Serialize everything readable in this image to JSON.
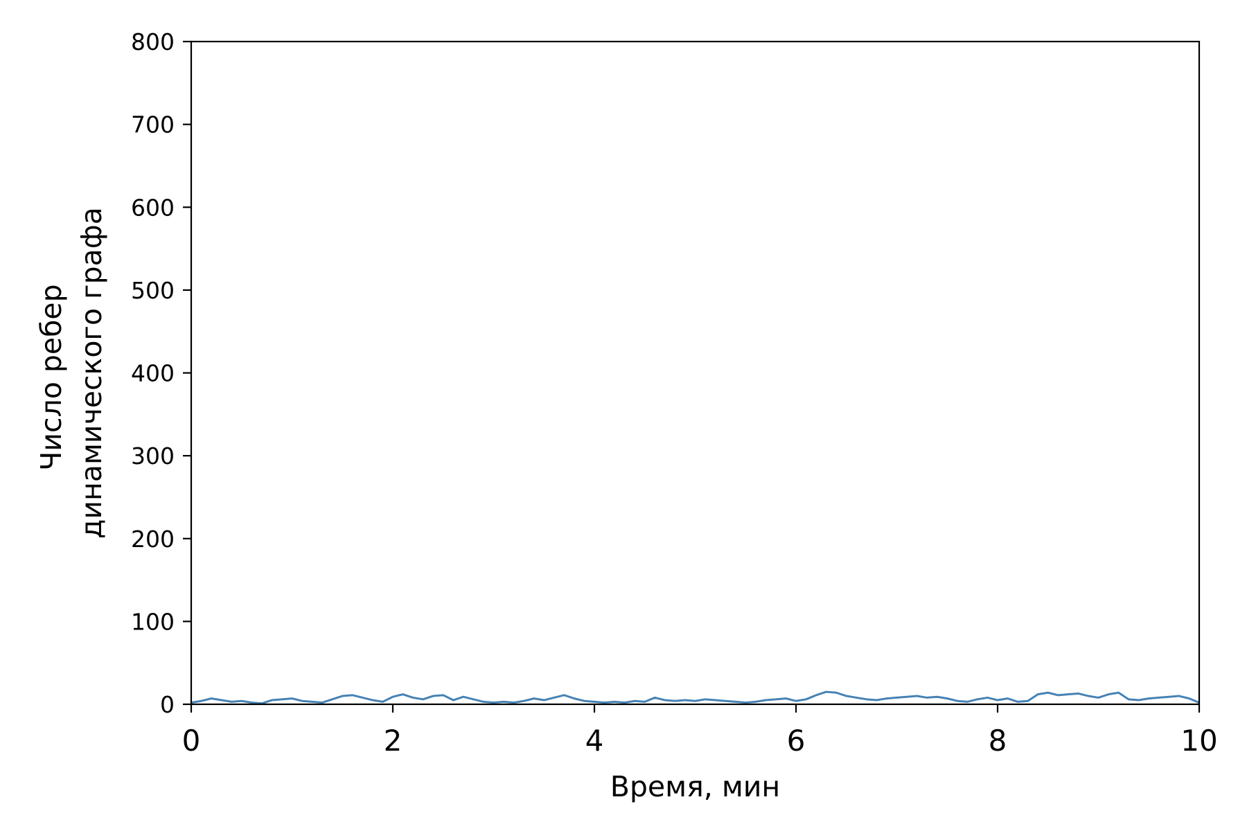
{
  "chart_data": {
    "type": "line",
    "title": "",
    "xlabel": "Время, мин",
    "ylabel_lines": [
      "Число ребер",
      "динамического графа"
    ],
    "xlim": [
      0,
      10
    ],
    "ylim": [
      0,
      800
    ],
    "x_ticks": [
      "0",
      "2",
      "4",
      "6",
      "8",
      "10"
    ],
    "y_ticks": [
      "0",
      "100",
      "200",
      "300",
      "400",
      "500",
      "600",
      "700",
      "800"
    ],
    "grid": false,
    "legend": "none",
    "series": [
      {
        "color": "#4682b4",
        "x": [
          0,
          0.1,
          0.2,
          0.3,
          0.4,
          0.5,
          0.6,
          0.7,
          0.8,
          0.9,
          1.0,
          1.1,
          1.2,
          1.3,
          1.4,
          1.5,
          1.6,
          1.7,
          1.8,
          1.9,
          2.0,
          2.1,
          2.2,
          2.3,
          2.4,
          2.5,
          2.6,
          2.7,
          2.8,
          2.9,
          3.0,
          3.1,
          3.2,
          3.3,
          3.4,
          3.5,
          3.6,
          3.7,
          3.8,
          3.9,
          4.0,
          4.1,
          4.2,
          4.3,
          4.4,
          4.5,
          4.6,
          4.7,
          4.8,
          4.9,
          5.0,
          5.1,
          5.2,
          5.3,
          5.4,
          5.5,
          5.6,
          5.7,
          5.8,
          5.9,
          6.0,
          6.1,
          6.2,
          6.3,
          6.4,
          6.5,
          6.6,
          6.7,
          6.8,
          6.9,
          7.0,
          7.1,
          7.2,
          7.3,
          7.4,
          7.5,
          7.6,
          7.7,
          7.8,
          7.9,
          8.0,
          8.1,
          8.2,
          8.3,
          8.4,
          8.5,
          8.6,
          8.7,
          8.8,
          8.9,
          9.0,
          9.1,
          9.2,
          9.3,
          9.4,
          9.5,
          9.6,
          9.7,
          9.8,
          9.9,
          10.0
        ],
        "values": [
          2,
          4,
          7,
          5,
          3,
          4,
          2,
          1,
          5,
          6,
          7,
          4,
          3,
          2,
          6,
          10,
          11,
          8,
          5,
          3,
          9,
          12,
          8,
          6,
          10,
          11,
          5,
          9,
          6,
          3,
          2,
          3,
          2,
          4,
          7,
          5,
          8,
          11,
          7,
          4,
          3,
          2,
          3,
          2,
          4,
          3,
          8,
          5,
          4,
          5,
          4,
          6,
          5,
          4,
          3,
          2,
          3,
          5,
          6,
          7,
          4,
          6,
          11,
          15,
          14,
          10,
          8,
          6,
          5,
          7,
          8,
          9,
          10,
          8,
          9,
          7,
          4,
          3,
          6,
          8,
          5,
          7,
          3,
          4,
          12,
          14,
          11,
          12,
          13,
          10,
          8,
          12,
          14,
          6,
          5,
          7,
          8,
          9,
          10,
          7,
          2
        ]
      }
    ]
  }
}
